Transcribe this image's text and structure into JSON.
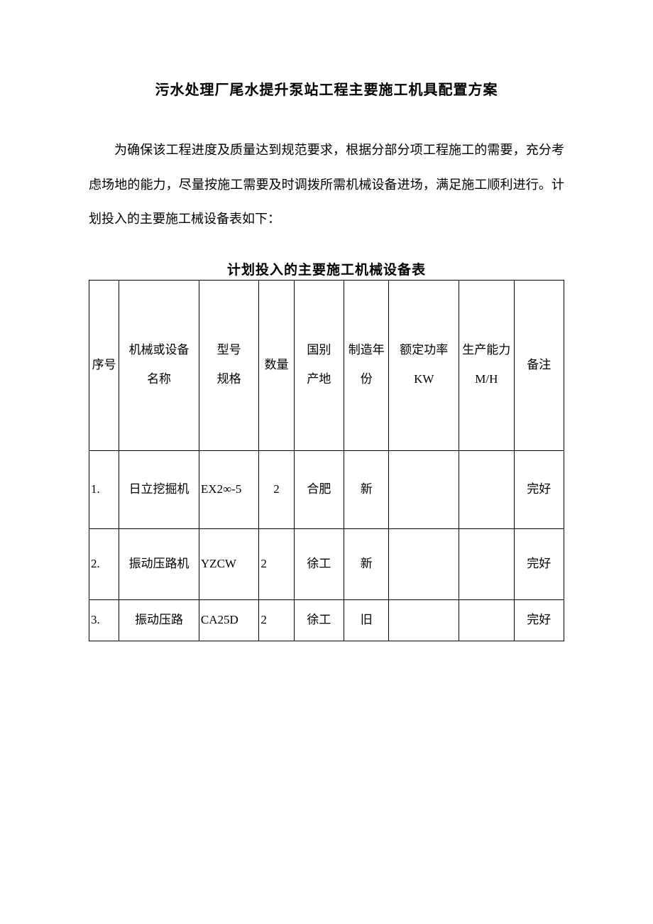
{
  "doc": {
    "title": "污水处理厂尾水提升泵站工程主要施工机具配置方案",
    "paragraph": "为确保该工程进度及质量达到规范要求，根据分部分项工程施工的需要，充分考虑场地的能力，尽量按施工需要及时调拨所需机械设备进场，满足施工顺利进行。计划投入的主要施工械设备表如下："
  },
  "table": {
    "title": "计划投入的主要施工机械设备表",
    "columns": {
      "seq": "序号",
      "name": "机械或设备\n名称",
      "model": "型号\n规格",
      "qty": "数量",
      "origin": "国别\n产地",
      "year": "制造年份",
      "power": "额定功率 KW",
      "capacity": "生产能力\nM/H",
      "remark": "备注"
    },
    "rows": [
      {
        "seq": "1.",
        "name": "日立挖掘机",
        "model": "EX2∞-5",
        "qty": "2",
        "origin": "合肥",
        "year": "新",
        "power": "",
        "capacity": "",
        "remark": "完好"
      },
      {
        "seq": "2.",
        "name": "振动压路机",
        "model": "YZCW",
        "qty": "2",
        "origin": "徐工",
        "year": "新",
        "power": "",
        "capacity": "",
        "remark": "完好"
      },
      {
        "seq": "3.",
        "name": "振动压路",
        "model": "CA25D",
        "qty": "2",
        "origin": "徐工",
        "year": "旧",
        "power": "",
        "capacity": "",
        "remark": "完好"
      }
    ]
  }
}
